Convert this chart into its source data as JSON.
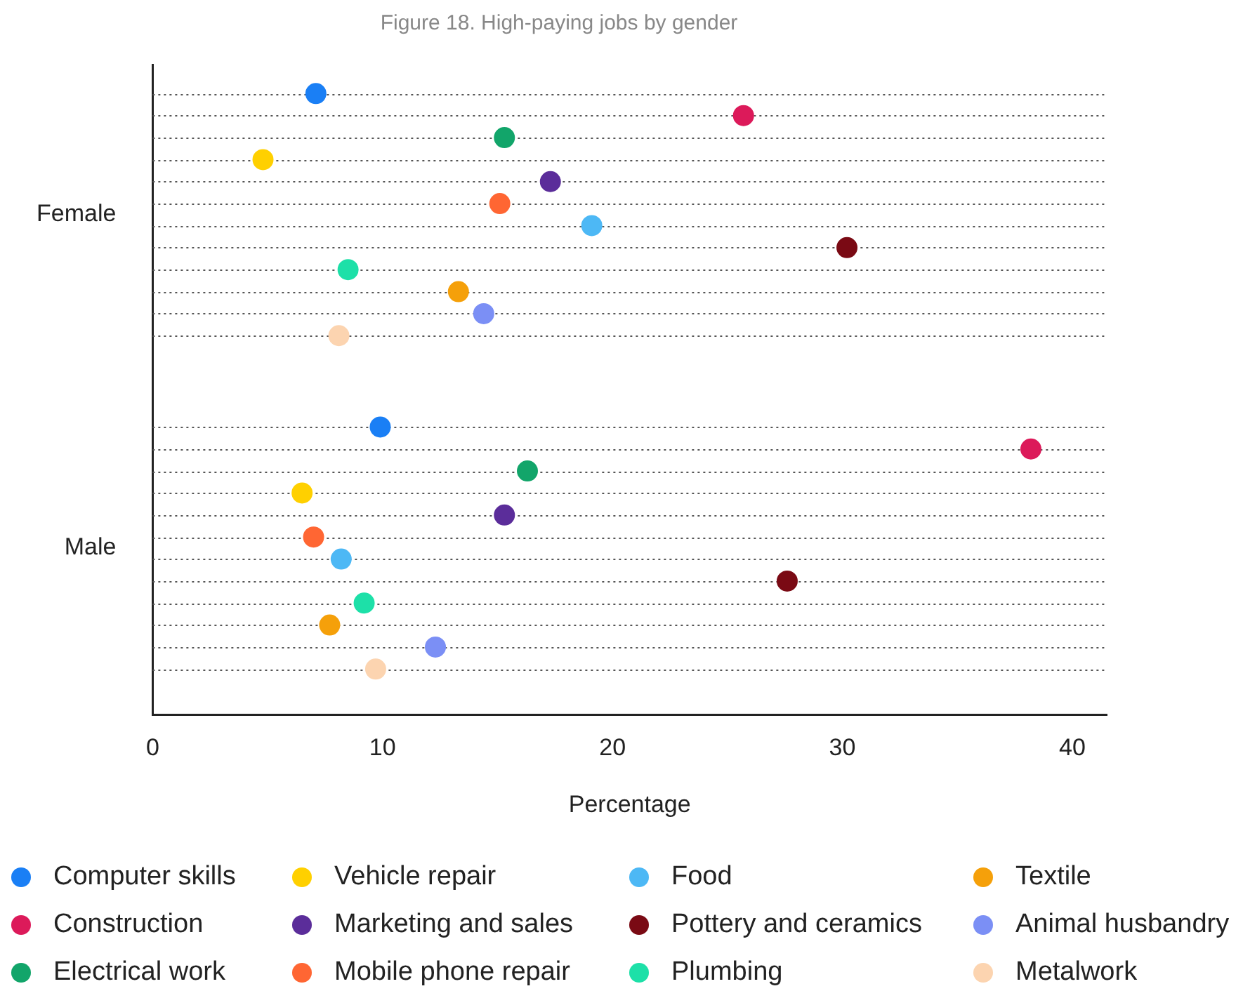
{
  "chart_data": {
    "type": "scatter",
    "orientation": "horizontal",
    "title": "Figure 18. High-paying jobs by gender",
    "xlabel": "Percentage",
    "categories": [
      "Female",
      "Male"
    ],
    "xlim": [
      0,
      41.5
    ],
    "xticks": [
      0,
      10,
      20,
      30,
      40
    ],
    "grid": "y",
    "legend": "bottom",
    "marker": "circle",
    "series": [
      {
        "name": "Computer skills",
        "color": "#1a7ff5",
        "values": [
          7.1,
          9.9
        ]
      },
      {
        "name": "Construction",
        "color": "#dc1a5a",
        "values": [
          25.7,
          38.2
        ]
      },
      {
        "name": "Electrical work",
        "color": "#12a56a",
        "values": [
          15.3,
          16.3
        ]
      },
      {
        "name": "Vehicle repair",
        "color": "#ffd000",
        "values": [
          4.8,
          6.5
        ]
      },
      {
        "name": "Marketing and sales",
        "color": "#5b2d9a",
        "values": [
          17.3,
          15.3
        ]
      },
      {
        "name": "Mobile phone repair",
        "color": "#ff6633",
        "values": [
          15.1,
          7.0
        ]
      },
      {
        "name": "Food",
        "color": "#4db8f5",
        "values": [
          19.1,
          8.2
        ]
      },
      {
        "name": "Pottery and ceramics",
        "color": "#7a0a14",
        "values": [
          30.2,
          27.6
        ]
      },
      {
        "name": "Plumbing",
        "color": "#1de0a8",
        "values": [
          8.5,
          9.2
        ]
      },
      {
        "name": "Textile",
        "color": "#f5a00a",
        "values": [
          13.3,
          7.7
        ]
      },
      {
        "name": "Animal husbandry",
        "color": "#7b8ff5",
        "values": [
          14.4,
          12.3
        ]
      },
      {
        "name": "Metalwork",
        "color": "#fcd4b0",
        "values": [
          8.1,
          9.7
        ]
      }
    ]
  }
}
